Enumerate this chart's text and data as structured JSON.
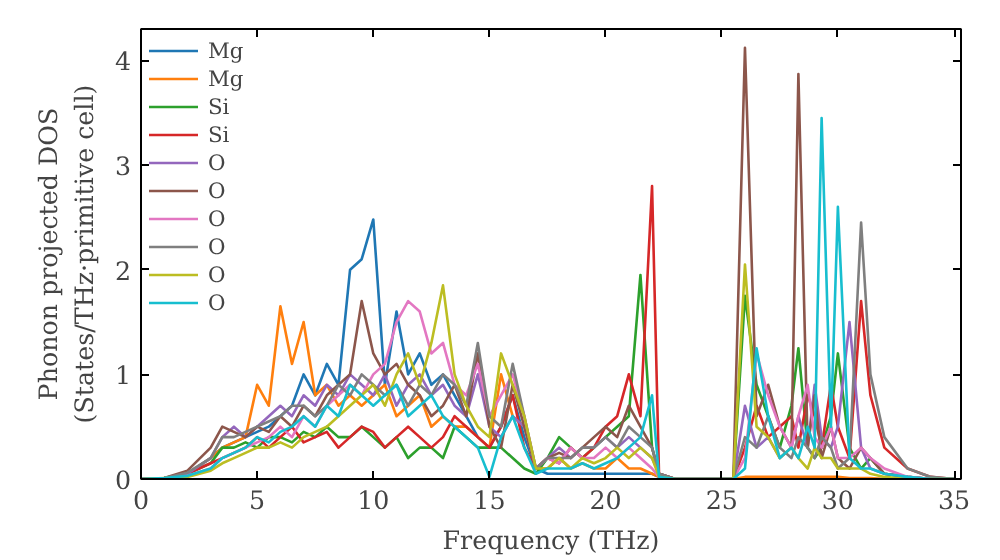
{
  "chart_data": {
    "type": "line",
    "xlabel": "Frequency (THz)",
    "ylabel": "Phonon projected DOS\n(States/THz·primitive cell)",
    "x": [
      0,
      1,
      2,
      3,
      3.5,
      4,
      4.5,
      5,
      5.5,
      6,
      6.5,
      7,
      7.5,
      8,
      8.5,
      9,
      9.5,
      10,
      10.5,
      11,
      11.5,
      12,
      12.5,
      13,
      13.5,
      14,
      14.5,
      15,
      15.5,
      16,
      16.5,
      17,
      17.5,
      18,
      18.5,
      19,
      19.5,
      20,
      20.5,
      21,
      21.5,
      22,
      22.3,
      23,
      25.5,
      26,
      26.5,
      27,
      27.5,
      28,
      28.3,
      28.7,
      29,
      29.3,
      29.7,
      30,
      30.5,
      31,
      31.4,
      32,
      33,
      34,
      35
    ],
    "xlim": [
      0,
      35.3
    ],
    "ylim": [
      0,
      4.3
    ],
    "xticks": [
      0,
      5,
      10,
      15,
      20,
      25,
      30,
      35
    ],
    "yticks": [
      0,
      1,
      2,
      3,
      4
    ],
    "grid": false,
    "legend": "top left",
    "marker": "none",
    "line_style": "solid",
    "series": [
      {
        "name": "Mg",
        "color": "#1f77b4",
        "values": [
          0,
          0.01,
          0.05,
          0.2,
          0.3,
          0.35,
          0.4,
          0.45,
          0.5,
          0.6,
          0.7,
          1.0,
          0.8,
          1.1,
          0.9,
          2.0,
          2.1,
          2.48,
          0.9,
          1.6,
          1.0,
          1.2,
          0.9,
          1.0,
          0.8,
          0.6,
          0.4,
          0.3,
          0.5,
          0.8,
          0.4,
          0.1,
          0.05,
          0.05,
          0.05,
          0.05,
          0.05,
          0.05,
          0.05,
          0.05,
          0.05,
          0.05,
          0.02,
          0,
          0,
          0,
          0,
          0,
          0,
          0,
          0,
          0,
          0,
          0,
          0,
          0,
          0,
          0,
          0,
          0,
          0,
          0,
          0
        ]
      },
      {
        "name": "Mg",
        "color": "#ff7f0e",
        "x": [
          2,
          3,
          3.5,
          4,
          4.5,
          5,
          5.5,
          6,
          6.5,
          7,
          7.5,
          8,
          8.5,
          9,
          9.5,
          10,
          10.5,
          11,
          11.5,
          12,
          12.5,
          13,
          13.5,
          14,
          14.5,
          15,
          15.5,
          16,
          16.5,
          17,
          17.5,
          18,
          18.5,
          19,
          19.5,
          20,
          20.5,
          21,
          21.5,
          22,
          22.3,
          23,
          25.5,
          26,
          26.5,
          27,
          27.5,
          28,
          28.3,
          28.7,
          29,
          29.3,
          29.7,
          30,
          30.5,
          31,
          31.4,
          32,
          33
        ],
        "values": [
          0.05,
          0.2,
          0.3,
          0.35,
          0.4,
          0.9,
          0.7,
          1.65,
          1.1,
          1.5,
          0.8,
          0.9,
          0.7,
          0.8,
          0.7,
          0.8,
          0.9,
          0.6,
          0.7,
          0.8,
          0.5,
          0.6,
          0.5,
          0.5,
          0.4,
          0.3,
          1.0,
          0.6,
          0.5,
          0.1,
          0.1,
          0.2,
          0.1,
          0.15,
          0.1,
          0.1,
          0.2,
          0.1,
          0.1,
          0.05,
          0.02,
          0,
          0,
          0.02,
          0.02,
          0.02,
          0.02,
          0.02,
          0.02,
          0.02,
          0.02,
          0.02,
          0.02,
          0.02,
          0.01,
          0.01,
          0.01,
          0,
          0
        ]
      },
      {
        "name": "Si",
        "color": "#2ca02c",
        "values": [
          0,
          0.01,
          0.05,
          0.15,
          0.3,
          0.3,
          0.35,
          0.3,
          0.4,
          0.4,
          0.35,
          0.45,
          0.4,
          0.5,
          0.4,
          0.4,
          0.5,
          0.4,
          0.3,
          0.4,
          0.2,
          0.3,
          0.3,
          0.2,
          0.5,
          0.4,
          0.3,
          0.3,
          0.3,
          0.2,
          0.1,
          0.05,
          0.2,
          0.4,
          0.3,
          0.2,
          0.3,
          0.4,
          0.5,
          0.6,
          1.95,
          0.3,
          0.05,
          0,
          0,
          1.75,
          0.9,
          0.6,
          0.3,
          0.7,
          1.25,
          0.3,
          0.2,
          0.3,
          0.6,
          1.2,
          0.3,
          0.1,
          0.2,
          0.05,
          0.02,
          0,
          0
        ]
      },
      {
        "name": "Si",
        "color": "#d62728",
        "values": [
          0,
          0.01,
          0.05,
          0.15,
          0.2,
          0.25,
          0.3,
          0.4,
          0.3,
          0.4,
          0.5,
          0.35,
          0.4,
          0.45,
          0.3,
          0.4,
          0.5,
          0.45,
          0.3,
          0.4,
          0.5,
          0.4,
          0.3,
          0.4,
          0.6,
          0.5,
          0.4,
          0.3,
          0.5,
          0.8,
          0.3,
          0.1,
          0.2,
          0.15,
          0.3,
          0.2,
          0.3,
          0.5,
          0.6,
          1.0,
          0.6,
          2.8,
          0.05,
          0,
          0,
          0.3,
          0.7,
          0.4,
          0.5,
          0.6,
          0.3,
          0.8,
          0.6,
          0.3,
          0.9,
          0.5,
          0.2,
          1.7,
          0.8,
          0.3,
          0.1,
          0.02,
          0
        ]
      },
      {
        "name": "O",
        "color": "#9467bd",
        "values": [
          0,
          0.01,
          0.05,
          0.2,
          0.4,
          0.5,
          0.4,
          0.5,
          0.6,
          0.7,
          0.6,
          0.8,
          0.7,
          0.9,
          0.8,
          1.0,
          0.9,
          0.8,
          1.0,
          0.7,
          0.9,
          1.0,
          0.8,
          0.9,
          0.7,
          0.6,
          1.0,
          0.5,
          0.4,
          0.6,
          0.5,
          0.1,
          0.2,
          0.3,
          0.2,
          0.3,
          0.3,
          0.4,
          0.3,
          0.4,
          0.3,
          0.2,
          0.05,
          0,
          0,
          0.7,
          0.3,
          0.4,
          0.2,
          0.3,
          0.6,
          0.3,
          0.9,
          0.4,
          0.3,
          0.5,
          1.5,
          0.3,
          0.1,
          0.05,
          0.02,
          0,
          0
        ]
      },
      {
        "name": "O",
        "color": "#8c564b",
        "values": [
          0,
          0.01,
          0.08,
          0.3,
          0.5,
          0.45,
          0.4,
          0.5,
          0.45,
          0.6,
          0.5,
          0.7,
          0.6,
          0.8,
          0.9,
          1.0,
          1.7,
          1.2,
          1.0,
          1.1,
          0.9,
          0.8,
          0.6,
          0.7,
          0.9,
          0.6,
          1.2,
          0.5,
          0.3,
          0.9,
          0.5,
          0.1,
          0.2,
          0.25,
          0.2,
          0.3,
          0.4,
          0.5,
          0.4,
          0.7,
          0.5,
          0.3,
          0.05,
          0,
          0,
          4.12,
          0.6,
          0.9,
          0.5,
          0.3,
          3.87,
          0.3,
          0.8,
          0.2,
          0.5,
          0.2,
          0.1,
          0.3,
          0.2,
          0.05,
          0.02,
          0,
          0
        ]
      },
      {
        "name": "O",
        "color": "#e377c2",
        "values": [
          0,
          0.01,
          0.03,
          0.1,
          0.2,
          0.25,
          0.3,
          0.35,
          0.4,
          0.5,
          0.4,
          0.6,
          0.5,
          0.7,
          0.8,
          0.9,
          0.8,
          1.0,
          1.1,
          1.5,
          1.7,
          1.6,
          1.2,
          1.3,
          0.9,
          0.8,
          1.1,
          0.6,
          0.8,
          1.0,
          0.6,
          0.1,
          0.2,
          0.15,
          0.3,
          0.2,
          0.2,
          0.3,
          0.2,
          0.3,
          0.2,
          0.1,
          0.02,
          0,
          0,
          0.2,
          1.2,
          0.8,
          0.5,
          0.3,
          0.6,
          0.9,
          0.4,
          0.3,
          0.5,
          0.2,
          0.2,
          0.3,
          0.2,
          0.1,
          0.02,
          0,
          0
        ]
      },
      {
        "name": "O",
        "color": "#7f7f7f",
        "values": [
          0,
          0.01,
          0.06,
          0.2,
          0.4,
          0.4,
          0.45,
          0.5,
          0.55,
          0.6,
          0.7,
          0.7,
          0.6,
          0.7,
          0.9,
          0.8,
          1.0,
          0.9,
          0.8,
          0.9,
          0.7,
          0.9,
          0.8,
          1.0,
          0.9,
          0.7,
          1.3,
          0.6,
          0.5,
          1.1,
          0.6,
          0.1,
          0.2,
          0.2,
          0.2,
          0.3,
          0.3,
          0.4,
          0.3,
          0.5,
          0.4,
          0.3,
          0.05,
          0,
          0,
          0.4,
          0.3,
          0.6,
          0.3,
          0.2,
          0.4,
          0.3,
          0.2,
          0.4,
          0.3,
          0.1,
          0.2,
          2.45,
          1.0,
          0.4,
          0.1,
          0.02,
          0
        ]
      },
      {
        "name": "O",
        "color": "#bcbd22",
        "values": [
          0,
          0.01,
          0.02,
          0.08,
          0.15,
          0.2,
          0.25,
          0.3,
          0.3,
          0.35,
          0.3,
          0.4,
          0.45,
          0.5,
          0.6,
          0.7,
          0.8,
          0.9,
          0.7,
          1.0,
          1.2,
          0.9,
          1.3,
          1.85,
          1.0,
          0.7,
          0.5,
          0.4,
          1.2,
          0.9,
          0.6,
          0.1,
          0.1,
          0.2,
          0.1,
          0.2,
          0.15,
          0.2,
          0.3,
          0.2,
          0.3,
          0.2,
          0.02,
          0,
          0,
          2.05,
          0.5,
          0.4,
          0.2,
          0.3,
          0.2,
          0.1,
          0.3,
          0.2,
          0.2,
          0.1,
          0.1,
          0.1,
          0.05,
          0.02,
          0,
          0,
          0
        ]
      },
      {
        "name": "O",
        "color": "#17becf",
        "values": [
          0,
          0.01,
          0.03,
          0.1,
          0.2,
          0.25,
          0.3,
          0.4,
          0.35,
          0.45,
          0.5,
          0.6,
          0.5,
          0.7,
          0.6,
          0.9,
          0.8,
          0.7,
          0.8,
          0.9,
          0.6,
          0.7,
          0.8,
          0.6,
          0.5,
          0.4,
          0.3,
          0.02,
          0.4,
          0.6,
          0.3,
          0.05,
          0.1,
          0.1,
          0.1,
          0.15,
          0.1,
          0.15,
          0.2,
          0.3,
          0.4,
          0.8,
          0.02,
          0,
          0,
          0.1,
          1.25,
          0.6,
          0.2,
          0.3,
          0.2,
          0.5,
          0.3,
          3.45,
          0.5,
          2.6,
          0.2,
          0.1,
          0.1,
          0.05,
          0.02,
          0,
          0
        ]
      }
    ]
  }
}
